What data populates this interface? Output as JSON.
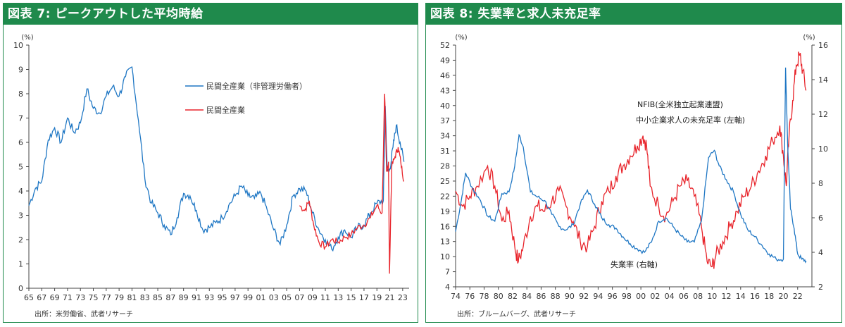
{
  "panels": [
    {
      "title": "図表 7: ピークアウトした平均時給",
      "source": "出所：米労働省、武者リサーチ"
    },
    {
      "title": "図表 8: 失業率と求人未充足率",
      "source": "出所：ブルームバーグ、武者リサーチ"
    }
  ],
  "chart_data": [
    {
      "type": "line",
      "title": "図表 7: ピークアウトした平均時給",
      "ylabel": "(%)",
      "ylim": [
        0,
        10
      ],
      "yticks": [
        0,
        1,
        2,
        3,
        4,
        5,
        6,
        7,
        8,
        9,
        10
      ],
      "xlim": [
        1965,
        2024
      ],
      "xticks": [
        "65",
        "67",
        "69",
        "71",
        "73",
        "75",
        "77",
        "79",
        "81",
        "83",
        "85",
        "87",
        "89",
        "91",
        "93",
        "95",
        "97",
        "99",
        "01",
        "03",
        "05",
        "07",
        "09",
        "11",
        "13",
        "15",
        "17",
        "19",
        "21",
        "23"
      ],
      "grid": false,
      "legend_position": "top-center",
      "series": [
        {
          "name": "民間全産業（非管理労働者）",
          "color": "#1f77c4",
          "points": [
            [
              1965,
              3.4
            ],
            [
              1966,
              4.1
            ],
            [
              1967,
              4.4
            ],
            [
              1968,
              6.1
            ],
            [
              1969,
              6.6
            ],
            [
              1970,
              6.0
            ],
            [
              1971,
              7.0
            ],
            [
              1972,
              6.4
            ],
            [
              1973,
              6.8
            ],
            [
              1974,
              8.2
            ],
            [
              1975,
              7.4
            ],
            [
              1976,
              7.2
            ],
            [
              1977,
              7.9
            ],
            [
              1978,
              8.3
            ],
            [
              1979,
              7.9
            ],
            [
              1980,
              8.7
            ],
            [
              1981,
              9.1
            ],
            [
              1982,
              6.9
            ],
            [
              1983,
              4.5
            ],
            [
              1984,
              3.5
            ],
            [
              1985,
              3.1
            ],
            [
              1986,
              2.6
            ],
            [
              1987,
              2.2
            ],
            [
              1988,
              2.9
            ],
            [
              1989,
              3.9
            ],
            [
              1990,
              3.8
            ],
            [
              1991,
              3.2
            ],
            [
              1992,
              2.4
            ],
            [
              1993,
              2.5
            ],
            [
              1994,
              2.7
            ],
            [
              1995,
              2.9
            ],
            [
              1996,
              3.4
            ],
            [
              1997,
              3.8
            ],
            [
              1998,
              4.2
            ],
            [
              1999,
              3.8
            ],
            [
              2000,
              3.7
            ],
            [
              2001,
              3.9
            ],
            [
              2002,
              3.2
            ],
            [
              2003,
              2.4
            ],
            [
              2004,
              1.8
            ],
            [
              2005,
              2.6
            ],
            [
              2006,
              3.8
            ],
            [
              2007,
              4.1
            ],
            [
              2008,
              4.0
            ],
            [
              2009,
              3.1
            ],
            [
              2010,
              2.4
            ],
            [
              2011,
              2.0
            ],
            [
              2012,
              1.6
            ],
            [
              2013,
              2.1
            ],
            [
              2014,
              2.4
            ],
            [
              2015,
              2.1
            ],
            [
              2016,
              2.5
            ],
            [
              2017,
              2.6
            ],
            [
              2018,
              3.1
            ],
            [
              2019,
              3.5
            ],
            [
              2020.0,
              3.6
            ],
            [
              2020.3,
              7.5
            ],
            [
              2020.6,
              4.8
            ],
            [
              2021.0,
              4.9
            ],
            [
              2021.5,
              5.8
            ],
            [
              2022.0,
              6.7
            ],
            [
              2022.6,
              6.0
            ],
            [
              2023.2,
              5.2
            ]
          ]
        },
        {
          "name": "民間全産業",
          "color": "#e8242b",
          "points": [
            [
              2007.0,
              3.4
            ],
            [
              2007.8,
              3.2
            ],
            [
              2008.5,
              3.6
            ],
            [
              2009.2,
              2.6
            ],
            [
              2010.0,
              1.9
            ],
            [
              2011.0,
              1.7
            ],
            [
              2012.0,
              2.0
            ],
            [
              2013.0,
              1.9
            ],
            [
              2014.0,
              2.1
            ],
            [
              2015.0,
              2.2
            ],
            [
              2016.0,
              2.5
            ],
            [
              2017.0,
              2.6
            ],
            [
              2018.0,
              2.9
            ],
            [
              2019.0,
              3.4
            ],
            [
              2019.8,
              3.1
            ],
            [
              2020.2,
              8.0
            ],
            [
              2020.5,
              4.8
            ],
            [
              2020.8,
              5.2
            ],
            [
              2020.95,
              0.6
            ],
            [
              2021.3,
              5.0
            ],
            [
              2021.8,
              5.4
            ],
            [
              2022.3,
              5.8
            ],
            [
              2022.7,
              5.2
            ],
            [
              2023.2,
              4.4
            ]
          ]
        }
      ]
    },
    {
      "type": "line",
      "title": "図表 8: 失業率と求人未充足率",
      "ylabel_left": "(%)",
      "ylabel_right": "(%)",
      "ylim_left": [
        4,
        52
      ],
      "yticks_left": [
        4,
        7,
        10,
        13,
        16,
        19,
        22,
        25,
        28,
        31,
        34,
        37,
        40,
        43,
        46,
        49,
        52
      ],
      "ylim_right": [
        2,
        16
      ],
      "yticks_right": [
        2,
        4,
        6,
        8,
        10,
        12,
        14,
        16
      ],
      "xlim": [
        1974,
        2024
      ],
      "xticks": [
        "74",
        "76",
        "78",
        "80",
        "82",
        "84",
        "86",
        "88",
        "90",
        "92",
        "94",
        "96",
        "98",
        "00",
        "02",
        "04",
        "06",
        "08",
        "10",
        "12",
        "14",
        "16",
        "18",
        "20",
        "22"
      ],
      "grid": false,
      "series": [
        {
          "name": "NFIB(全米独立起業連盟) 中小企業求人の未充足率 (左軸)",
          "axis": "left",
          "color": "#e8242b",
          "points": [
            [
              1974.0,
              23
            ],
            [
              1975.0,
              20
            ],
            [
              1976.0,
              22
            ],
            [
              1977.0,
              24
            ],
            [
              1978.5,
              28
            ],
            [
              1979.5,
              24
            ],
            [
              1980.5,
              17
            ],
            [
              1981.5,
              19
            ],
            [
              1982.3,
              12
            ],
            [
              1982.8,
              9
            ],
            [
              1983.5,
              12
            ],
            [
              1984.5,
              18
            ],
            [
              1985.5,
              20
            ],
            [
              1986.5,
              19
            ],
            [
              1987.5,
              21
            ],
            [
              1988.5,
              23
            ],
            [
              1989.5,
              20
            ],
            [
              1990.5,
              17
            ],
            [
              1991.5,
              13
            ],
            [
              1992.5,
              12
            ],
            [
              1993.5,
              16
            ],
            [
              1994.5,
              21
            ],
            [
              1995.5,
              23
            ],
            [
              1996.5,
              26
            ],
            [
              1997.5,
              28
            ],
            [
              1998.5,
              30
            ],
            [
              1999.5,
              32
            ],
            [
              2000.3,
              34
            ],
            [
              2000.8,
              32
            ],
            [
              2001.3,
              24
            ],
            [
              2002.5,
              20
            ],
            [
              2003.5,
              18
            ],
            [
              2004.5,
              21
            ],
            [
              2005.5,
              24
            ],
            [
              2006.5,
              25
            ],
            [
              2007.5,
              22
            ],
            [
              2008.5,
              16
            ],
            [
              2009.3,
              9
            ],
            [
              2010.0,
              8
            ],
            [
              2010.5,
              10
            ],
            [
              2011.5,
              13
            ],
            [
              2012.5,
              16
            ],
            [
              2013.5,
              19
            ],
            [
              2014.5,
              22
            ],
            [
              2015.5,
              24
            ],
            [
              2016.5,
              27
            ],
            [
              2017.5,
              30
            ],
            [
              2018.5,
              33
            ],
            [
              2019.5,
              36
            ],
            [
              2020.0,
              30
            ],
            [
              2020.4,
              24
            ],
            [
              2020.8,
              34
            ],
            [
              2021.3,
              41
            ],
            [
              2021.8,
              48
            ],
            [
              2022.3,
              50
            ],
            [
              2022.7,
              47
            ],
            [
              2023.2,
              43
            ]
          ]
        },
        {
          "name": "失業率 (右軸)",
          "axis": "right",
          "color": "#1f77c4",
          "points": [
            [
              1974.0,
              5.2
            ],
            [
              1974.8,
              7.0
            ],
            [
              1975.4,
              8.6
            ],
            [
              1976.5,
              7.6
            ],
            [
              1977.5,
              7.0
            ],
            [
              1978.5,
              6.1
            ],
            [
              1979.5,
              5.8
            ],
            [
              1980.5,
              7.4
            ],
            [
              1981.5,
              7.5
            ],
            [
              1982.3,
              9.0
            ],
            [
              1982.9,
              10.8
            ],
            [
              1983.5,
              10.1
            ],
            [
              1984.5,
              7.5
            ],
            [
              1985.5,
              7.2
            ],
            [
              1986.5,
              7.0
            ],
            [
              1987.5,
              6.2
            ],
            [
              1988.5,
              5.5
            ],
            [
              1989.5,
              5.3
            ],
            [
              1990.5,
              5.6
            ],
            [
              1991.5,
              6.8
            ],
            [
              1992.5,
              7.6
            ],
            [
              1993.5,
              6.8
            ],
            [
              1994.5,
              6.0
            ],
            [
              1995.5,
              5.6
            ],
            [
              1996.5,
              5.4
            ],
            [
              1997.5,
              4.9
            ],
            [
              1998.5,
              4.5
            ],
            [
              1999.5,
              4.2
            ],
            [
              2000.5,
              4.0
            ],
            [
              2001.5,
              4.6
            ],
            [
              2002.5,
              5.8
            ],
            [
              2003.5,
              6.0
            ],
            [
              2004.5,
              5.5
            ],
            [
              2005.5,
              5.0
            ],
            [
              2006.5,
              4.6
            ],
            [
              2007.5,
              4.6
            ],
            [
              2008.5,
              5.8
            ],
            [
              2009.5,
              9.5
            ],
            [
              2010.3,
              9.9
            ],
            [
              2011.0,
              9.0
            ],
            [
              2012.0,
              8.2
            ],
            [
              2013.0,
              7.5
            ],
            [
              2014.0,
              6.2
            ],
            [
              2015.0,
              5.3
            ],
            [
              2016.0,
              4.9
            ],
            [
              2017.0,
              4.4
            ],
            [
              2018.0,
              3.9
            ],
            [
              2019.0,
              3.6
            ],
            [
              2020.0,
              3.6
            ],
            [
              2020.3,
              14.7
            ],
            [
              2020.6,
              10.2
            ],
            [
              2021.0,
              6.5
            ],
            [
              2021.5,
              5.4
            ],
            [
              2022.0,
              3.9
            ],
            [
              2022.6,
              3.6
            ],
            [
              2023.2,
              3.5
            ]
          ]
        }
      ]
    }
  ]
}
